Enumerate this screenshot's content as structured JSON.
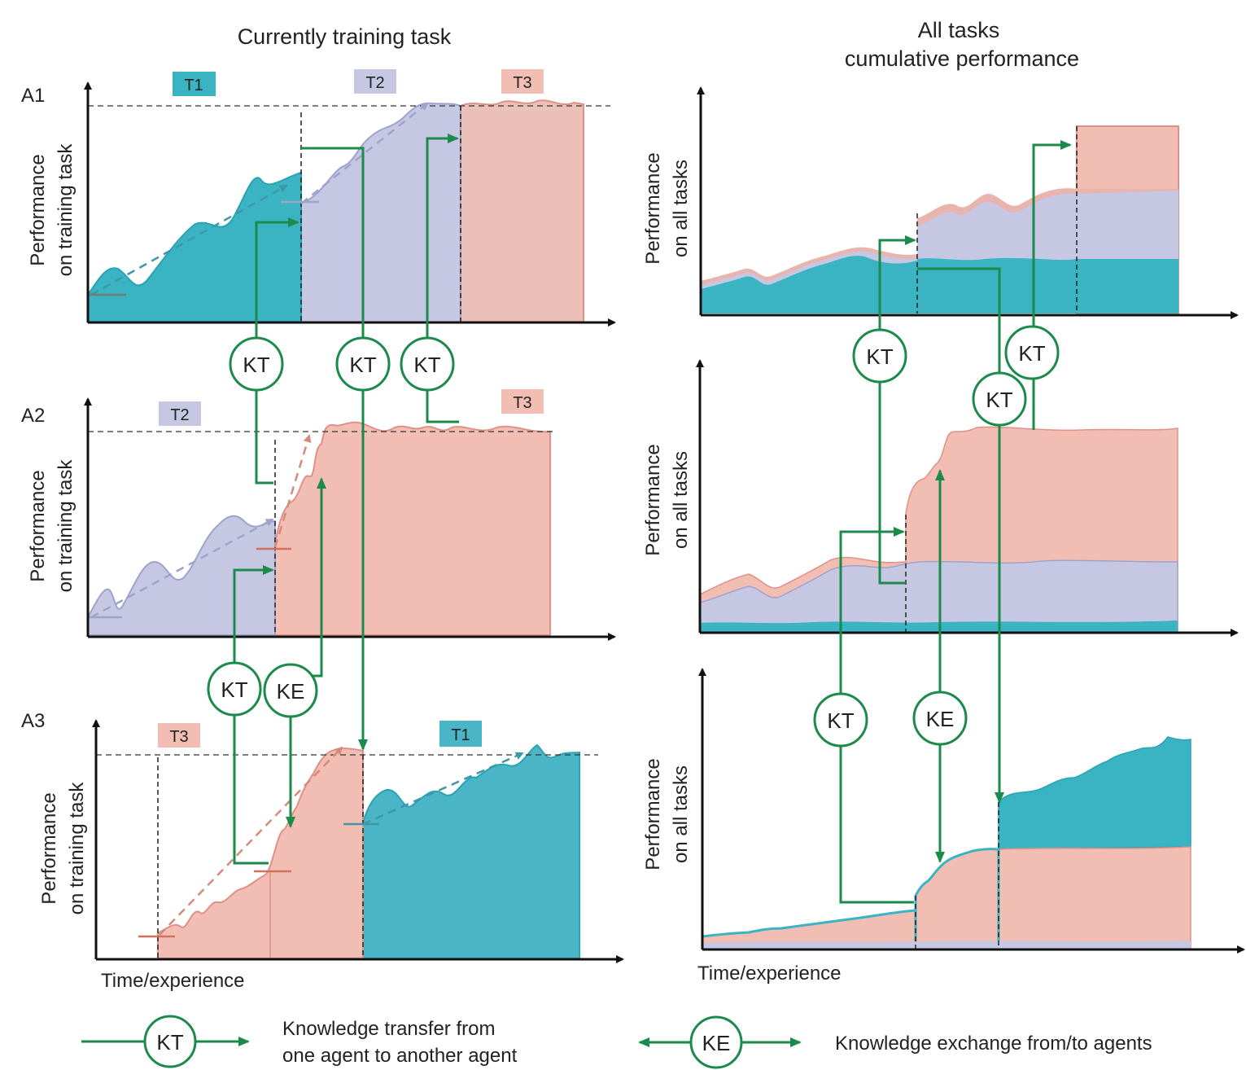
{
  "titles": {
    "left": "Currently training task",
    "right_line1": "All tasks",
    "right_line2": "cumulative performance"
  },
  "agents": [
    "A1",
    "A2",
    "A3"
  ],
  "axes": {
    "ylabel_left_line1": "Performance",
    "ylabel_left_line2": "on training task",
    "ylabel_right_line1": "Performance",
    "ylabel_right_line2": "on all tasks",
    "xlabel": "Time/experience"
  },
  "tasks": {
    "t1": "T1",
    "t2": "T2",
    "t3": "T3"
  },
  "badges": {
    "kt": "KT",
    "ke": "KE"
  },
  "legend": {
    "kt_badge": "KT",
    "kt_line1": "Knowledge transfer from",
    "kt_line2": "one agent to another agent",
    "ke_badge": "KE",
    "ke_text": "Knowledge exchange from/to agents"
  },
  "colors": {
    "t1": "#4ab5c7",
    "t1_line": "#2aa3b3",
    "t2": "#c6c8e3",
    "t2_line": "#9fa3cc",
    "t3": "#f2bdb3",
    "t3_line": "#e09187",
    "arrow_green": "#1b8a4a",
    "axis": "#111111"
  }
}
